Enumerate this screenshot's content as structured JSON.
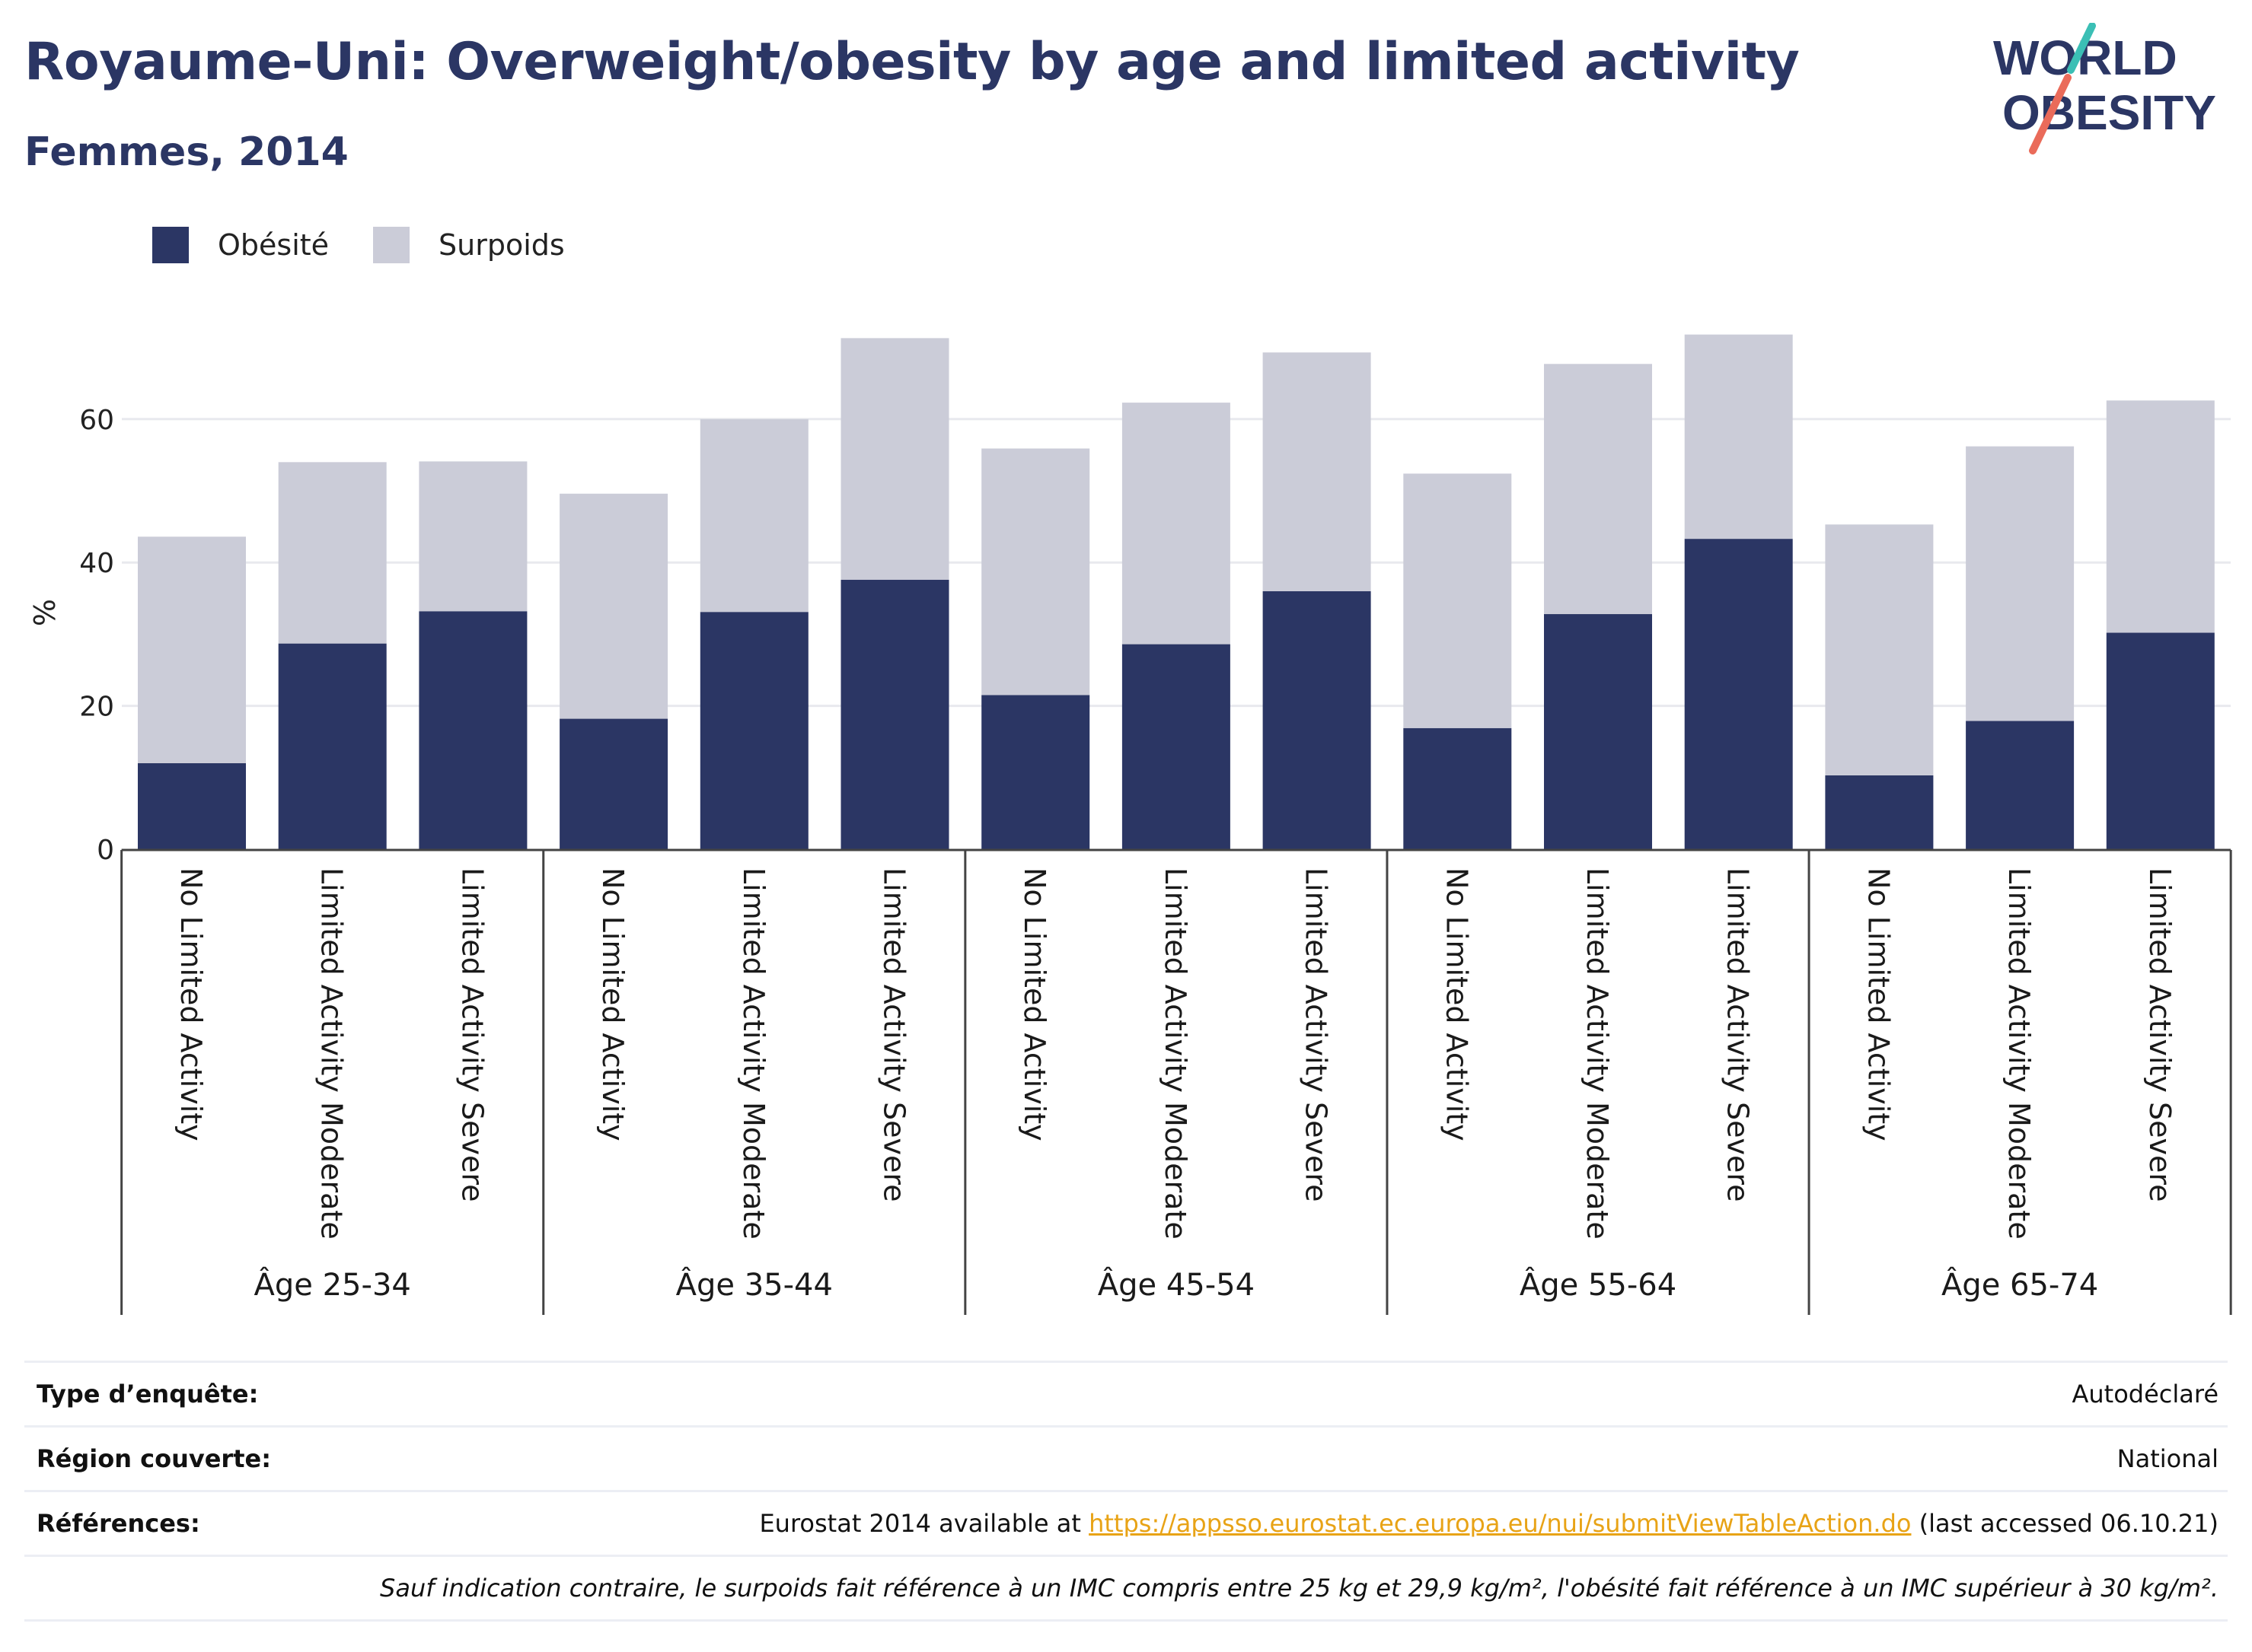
{
  "header": {
    "title": "Royaume-Uni: Overweight/obesity by age and limited activity",
    "subtitle": "Femmes, 2014"
  },
  "logo": {
    "line1": "WORLD",
    "line2": "OBESITY",
    "colors": {
      "text": "#2b3664",
      "slash_teal": "#3bbfb5",
      "slash_coral": "#ea6b5a"
    }
  },
  "colors": {
    "obesity": "#2b3664",
    "overweight": "#cbccd8",
    "gridline": "#e8e9ee",
    "link": "#e8a316"
  },
  "chart_data": {
    "type": "bar",
    "stacked": true,
    "ylabel": "%",
    "xlabel": "",
    "ylim": [
      0,
      75
    ],
    "yticks": [
      0,
      20,
      40,
      60
    ],
    "grid": true,
    "legend_position": "top-left",
    "groups": [
      {
        "label": "Âge 25-34",
        "categories": [
          "No Limited Activity",
          "Limited Activity Moderate",
          "Limited Activity Severe"
        ]
      },
      {
        "label": "Âge 35-44",
        "categories": [
          "No Limited Activity",
          "Limited Activity Moderate",
          "Limited Activity Severe"
        ]
      },
      {
        "label": "Âge 45-54",
        "categories": [
          "No Limited Activity",
          "Limited Activity Moderate",
          "Limited Activity Severe"
        ]
      },
      {
        "label": "Âge 55-64",
        "categories": [
          "No Limited Activity",
          "Limited Activity Moderate",
          "Limited Activity Severe"
        ]
      },
      {
        "label": "Âge 65-74",
        "categories": [
          "No Limited Activity",
          "Limited Activity Moderate",
          "Limited Activity Severe"
        ]
      }
    ],
    "series": [
      {
        "name": "Obésité",
        "values": [
          12.0,
          28.7,
          33.2,
          18.2,
          33.1,
          37.6,
          21.5,
          28.6,
          36.0,
          16.9,
          32.8,
          43.3,
          10.3,
          17.9,
          30.2
        ]
      },
      {
        "name": "Surpoids",
        "values": [
          31.6,
          25.3,
          20.9,
          31.4,
          26.9,
          33.7,
          34.4,
          33.7,
          33.3,
          35.5,
          34.9,
          28.5,
          35.0,
          38.3,
          32.4
        ]
      }
    ]
  },
  "info_table": {
    "survey_type_label": "Type d’enquête:",
    "survey_type_value": "Autodéclaré",
    "region_label": "Région couverte:",
    "region_value": "National",
    "references_label": "Références:",
    "references_prefix": "Eurostat 2014 available at ",
    "references_link": "https://appsso.eurostat.ec.europa.eu/nui/submitViewTableAction.do",
    "references_suffix": " (last accessed 06.10.21)",
    "note": "Sauf indication contraire, le surpoids fait référence à un IMC compris entre 25 kg et 29,9 kg/m², l'obésité fait référence à un IMC supérieur à 30 kg/m²."
  }
}
